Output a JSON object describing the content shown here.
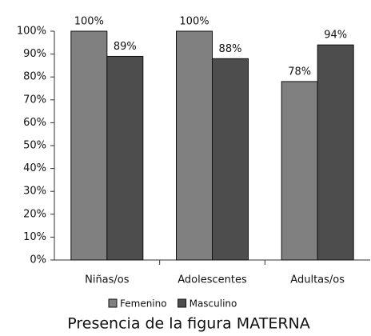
{
  "chart_data": {
    "type": "bar",
    "title": "Presencia de la figura MATERNA",
    "categories": [
      "Niñas/os",
      "Adolescentes",
      "Adultas/os"
    ],
    "series": [
      {
        "name": "Femenino",
        "color": "#808080",
        "values": [
          100,
          100,
          78
        ],
        "value_labels": [
          "100%",
          "100%",
          "78%"
        ]
      },
      {
        "name": "Masculino",
        "color": "#4d4d4d",
        "values": [
          89,
          88,
          94
        ],
        "value_labels": [
          "89%",
          "88%",
          "94%"
        ]
      }
    ],
    "ylim": [
      0,
      100
    ],
    "yticks": [
      {
        "value": 0,
        "label": "0%"
      },
      {
        "value": 10,
        "label": "10%"
      },
      {
        "value": 20,
        "label": "20%"
      },
      {
        "value": 30,
        "label": "30%"
      },
      {
        "value": 40,
        "label": "40%"
      },
      {
        "value": 50,
        "label": "50%"
      },
      {
        "value": 60,
        "label": "60%"
      },
      {
        "value": 70,
        "label": "70%"
      },
      {
        "value": 80,
        "label": "80%"
      },
      {
        "value": 90,
        "label": "90%"
      },
      {
        "value": 100,
        "label": "100%"
      }
    ],
    "grid": false,
    "legend": "bottom"
  }
}
